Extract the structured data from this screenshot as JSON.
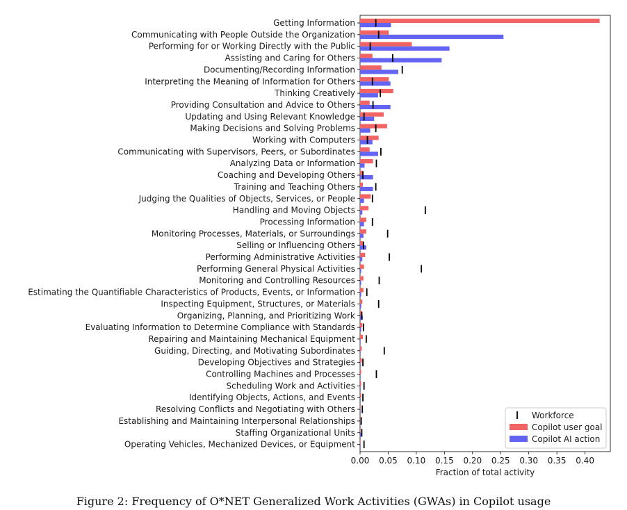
{
  "caption": "Figure 2: Frequency of O*NET Generalized Work Activities (GWAs) in Copilot usage",
  "chart_data": {
    "type": "bar",
    "orientation": "horizontal",
    "xlabel": "Fraction of total activity",
    "xlim": [
      0,
      0.445
    ],
    "xticks": [
      0.0,
      0.05,
      0.1,
      0.15,
      0.2,
      0.25,
      0.3,
      0.35,
      0.4
    ],
    "xtick_labels": [
      "0.00",
      "0.05",
      "0.10",
      "0.15",
      "0.20",
      "0.25",
      "0.30",
      "0.35",
      "0.40"
    ],
    "legend_position": "bottom-right",
    "categories": [
      "Getting Information",
      "Communicating with People Outside the Organization",
      "Performing for or Working Directly with the Public",
      "Assisting and Caring for Others",
      "Documenting/Recording Information",
      "Interpreting the Meaning of Information for Others",
      "Thinking Creatively",
      "Providing Consultation and Advice to Others",
      "Updating and Using Relevant Knowledge",
      "Making Decisions and Solving Problems",
      "Working with Computers",
      "Communicating with Supervisors, Peers, or Subordinates",
      "Analyzing Data or Information",
      "Coaching and Developing Others",
      "Training and Teaching Others",
      "Judging the Qualities of Objects, Services, or People",
      "Handling and Moving Objects",
      "Processing Information",
      "Monitoring Processes, Materials, or Surroundings",
      "Selling or Influencing Others",
      "Performing Administrative Activities",
      "Performing General Physical Activities",
      "Monitoring and Controlling Resources",
      "Estimating the Quantifiable Characteristics of Products, Events, or Information",
      "Inspecting Equipment, Structures, or Materials",
      "Organizing, Planning, and Prioritizing Work",
      "Evaluating Information to Determine Compliance with Standards",
      "Repairing and Maintaining Mechanical Equipment",
      "Guiding, Directing, and Motivating Subordinates",
      "Developing Objectives and Strategies",
      "Controlling Machines and Processes",
      "Scheduling Work and Activities",
      "Identifying Objects, Actions, and Events",
      "Resolving Conflicts and Negotiating with Others",
      "Establishing and Maintaining Interpersonal Relationships",
      "Staffing Organizational Units",
      "Operating Vehicles, Mechanized Devices, or Equipment"
    ],
    "series": [
      {
        "name": "Copilot user goal",
        "color": "#f26464",
        "values": [
          0.426,
          0.051,
          0.092,
          0.022,
          0.038,
          0.051,
          0.059,
          0.017,
          0.042,
          0.048,
          0.033,
          0.017,
          0.023,
          0.006,
          0.005,
          0.019,
          0.015,
          0.011,
          0.011,
          0.005,
          0.009,
          0.007,
          0.006,
          0.006,
          0.004,
          0.004,
          0.004,
          0.005,
          0.003,
          0.003,
          0.002,
          0.002,
          0.002,
          0.001,
          0.001,
          0.001,
          0.001
        ]
      },
      {
        "name": "Copilot AI action",
        "color": "#6464f2",
        "values": [
          0.055,
          0.255,
          0.159,
          0.145,
          0.068,
          0.054,
          0.032,
          0.054,
          0.025,
          0.018,
          0.022,
          0.032,
          0.008,
          0.023,
          0.023,
          0.007,
          0.004,
          0.007,
          0.006,
          0.011,
          0.004,
          0.002,
          0.002,
          0.002,
          0.002,
          0.005,
          0.002,
          0.001,
          0.001,
          0.001,
          0.001,
          0.001,
          0.001,
          0.001,
          0.001,
          0.002,
          0.001
        ]
      },
      {
        "name": "Workforce",
        "color": "#000000",
        "marker": "vertical-tick",
        "values": [
          0.028,
          0.033,
          0.018,
          0.058,
          0.075,
          0.022,
          0.036,
          0.023,
          0.007,
          0.028,
          0.013,
          0.037,
          0.029,
          0.005,
          0.028,
          0.022,
          0.116,
          0.022,
          0.049,
          0.006,
          0.052,
          0.109,
          0.034,
          0.012,
          0.033,
          0.003,
          0.006,
          0.011,
          0.043,
          0.005,
          0.029,
          0.007,
          0.005,
          0.004,
          0.002,
          0.003,
          0.007
        ]
      }
    ],
    "legend": [
      "Workforce",
      "Copilot user goal",
      "Copilot AI action"
    ]
  }
}
